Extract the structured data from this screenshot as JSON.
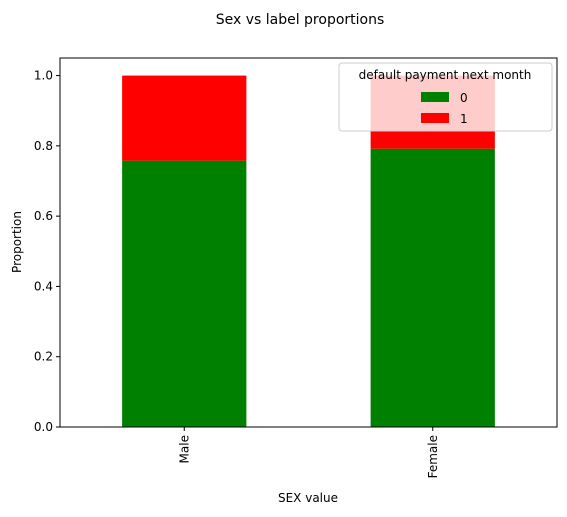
{
  "chart_data": {
    "type": "bar",
    "stacked": true,
    "title": "Sex vs label proportions",
    "xlabel": "SEX value",
    "ylabel": "Proportion",
    "categories": [
      "Male",
      "Female"
    ],
    "series": [
      {
        "name": "0",
        "color": "#008000",
        "values": [
          0.758,
          0.792
        ]
      },
      {
        "name": "1",
        "color": "#ff0000",
        "values": [
          0.242,
          0.208
        ]
      }
    ],
    "ylim": [
      0,
      1.05
    ],
    "yticks": [
      "0.0",
      "0.2",
      "0.4",
      "0.6",
      "0.8",
      "1.0"
    ],
    "legend": {
      "title": "default payment next month",
      "placement": "top-right"
    },
    "grid": false
  }
}
